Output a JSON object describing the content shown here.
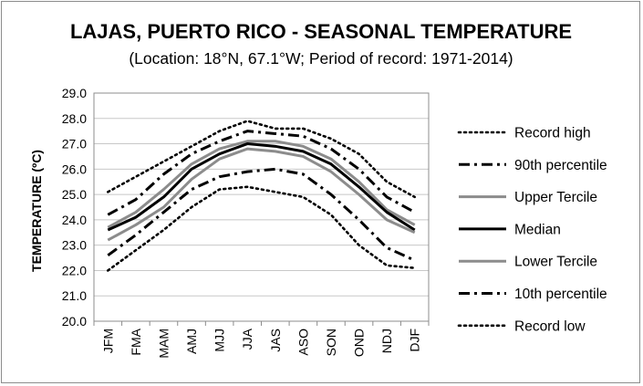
{
  "chart_data": {
    "type": "line",
    "title": "LAJAS, PUERTO RICO - SEASONAL TEMPERATURE",
    "subtitle": "(Location: 18°N, 67.1°W; Period of record: 1971-2014)",
    "ylabel": "TEMPERATURE (ºC)",
    "xlabel": "",
    "ylim": [
      20.0,
      29.0
    ],
    "yticks": [
      "20.0",
      "21.0",
      "22.0",
      "23.0",
      "24.0",
      "25.0",
      "26.0",
      "27.0",
      "28.0",
      "29.0"
    ],
    "categories": [
      "JFM",
      "FMA",
      "MAM",
      "AMJ",
      "MJJ",
      "JJA",
      "JAS",
      "ASO",
      "SON",
      "OND",
      "NDJ",
      "DJF"
    ],
    "legend_position": "right",
    "grid": true,
    "series": [
      {
        "name": "Record high",
        "style": "dotted",
        "color": "#000000",
        "values": [
          25.1,
          25.7,
          26.3,
          26.9,
          27.5,
          27.9,
          27.6,
          27.6,
          27.2,
          26.6,
          25.5,
          24.9
        ]
      },
      {
        "name": "90th percentile",
        "style": "dashdot",
        "color": "#000000",
        "values": [
          24.2,
          24.8,
          25.8,
          26.6,
          27.1,
          27.5,
          27.4,
          27.3,
          26.8,
          26.0,
          24.9,
          24.3
        ]
      },
      {
        "name": "Upper Tercile",
        "style": "solid-gray",
        "color": "#8c8c8c",
        "values": [
          23.7,
          24.3,
          25.2,
          26.2,
          26.8,
          27.1,
          27.1,
          26.9,
          26.4,
          25.5,
          24.4,
          23.8
        ]
      },
      {
        "name": "Median",
        "style": "solid",
        "color": "#000000",
        "values": [
          23.6,
          24.1,
          24.9,
          26.0,
          26.6,
          27.0,
          26.9,
          26.7,
          26.2,
          25.3,
          24.3,
          23.6
        ]
      },
      {
        "name": "Lower Tercile",
        "style": "solid-gray",
        "color": "#8c8c8c",
        "values": [
          23.2,
          23.8,
          24.5,
          25.6,
          26.4,
          26.8,
          26.7,
          26.5,
          25.9,
          25.0,
          24.0,
          23.5
        ]
      },
      {
        "name": "10th percentile",
        "style": "dashdot",
        "color": "#000000",
        "values": [
          22.6,
          23.4,
          24.3,
          25.2,
          25.7,
          25.9,
          26.0,
          25.8,
          25.0,
          24.0,
          22.9,
          22.4
        ]
      },
      {
        "name": "Record low",
        "style": "dotted",
        "color": "#000000",
        "values": [
          22.0,
          22.8,
          23.6,
          24.5,
          25.2,
          25.3,
          25.1,
          24.9,
          24.2,
          23.0,
          22.2,
          22.1
        ]
      }
    ]
  }
}
